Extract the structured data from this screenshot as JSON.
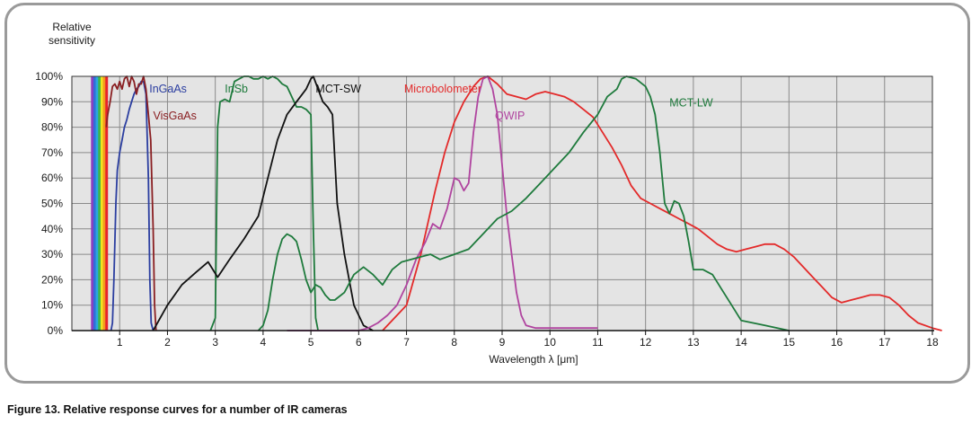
{
  "caption": "Figure 13. Relative response curves for a number of IR cameras",
  "chart_data": {
    "type": "line",
    "title": "",
    "ylabel_lines": [
      "Relative",
      "sensitivity"
    ],
    "xlabel": "Wavelength λ [μm]",
    "xlim": [
      0,
      18
    ],
    "ylim": [
      0,
      100
    ],
    "x_ticks": [
      "1",
      "2",
      "3",
      "4",
      "5",
      "6",
      "7",
      "8",
      "9",
      "10",
      "11",
      "12",
      "13",
      "14",
      "15",
      "16",
      "17",
      "18"
    ],
    "y_ticks": [
      "0%",
      "10%",
      "20%",
      "30%",
      "40%",
      "50%",
      "60%",
      "70%",
      "80%",
      "90%",
      "100%"
    ],
    "grid": true,
    "plot_background": "#e4e4e4",
    "visible_band": {
      "x": [
        0.4,
        0.75
      ],
      "colors": [
        "#8b3fbf",
        "#2f6fd8",
        "#2aa7df",
        "#3db34a",
        "#f2e21e",
        "#f39a1e",
        "#e8232a"
      ]
    },
    "series": [
      {
        "name": "InGaAs",
        "color": "#2b3ea0",
        "points": [
          [
            0.82,
            0
          ],
          [
            0.85,
            3
          ],
          [
            0.88,
            20
          ],
          [
            0.92,
            50
          ],
          [
            0.95,
            63
          ],
          [
            1.0,
            70
          ],
          [
            1.05,
            75
          ],
          [
            1.1,
            80
          ],
          [
            1.15,
            83
          ],
          [
            1.2,
            87
          ],
          [
            1.25,
            90
          ],
          [
            1.3,
            93
          ],
          [
            1.35,
            95
          ],
          [
            1.4,
            96
          ],
          [
            1.45,
            98
          ],
          [
            1.5,
            98
          ],
          [
            1.55,
            93
          ],
          [
            1.6,
            60
          ],
          [
            1.63,
            20
          ],
          [
            1.66,
            3
          ],
          [
            1.7,
            0
          ]
        ]
      },
      {
        "name": "VisGaAs",
        "color": "#8a1f22",
        "points": [
          [
            0.72,
            80
          ],
          [
            0.75,
            85
          ],
          [
            0.8,
            90
          ],
          [
            0.85,
            96
          ],
          [
            0.9,
            97
          ],
          [
            0.95,
            95
          ],
          [
            1.0,
            98
          ],
          [
            1.05,
            95
          ],
          [
            1.1,
            99
          ],
          [
            1.15,
            100
          ],
          [
            1.2,
            96
          ],
          [
            1.25,
            100
          ],
          [
            1.3,
            98
          ],
          [
            1.35,
            93
          ],
          [
            1.4,
            97
          ],
          [
            1.45,
            97
          ],
          [
            1.5,
            100
          ],
          [
            1.55,
            95
          ],
          [
            1.6,
            85
          ],
          [
            1.65,
            75
          ],
          [
            1.7,
            40
          ],
          [
            1.73,
            10
          ],
          [
            1.76,
            0
          ]
        ]
      },
      {
        "name": "InSb",
        "color": "#1e7a3c",
        "points": [
          [
            2.9,
            0
          ],
          [
            3.0,
            5
          ],
          [
            3.05,
            80
          ],
          [
            3.1,
            90
          ],
          [
            3.2,
            91
          ],
          [
            3.3,
            90
          ],
          [
            3.4,
            98
          ],
          [
            3.5,
            99
          ],
          [
            3.6,
            100
          ],
          [
            3.7,
            100
          ],
          [
            3.8,
            99
          ],
          [
            3.9,
            99
          ],
          [
            4.0,
            100
          ],
          [
            4.1,
            99
          ],
          [
            4.2,
            100
          ],
          [
            4.3,
            99
          ],
          [
            4.4,
            97
          ],
          [
            4.5,
            96
          ],
          [
            4.6,
            92
          ],
          [
            4.7,
            88
          ],
          [
            4.8,
            88
          ],
          [
            4.9,
            87
          ],
          [
            5.0,
            85
          ],
          [
            5.05,
            40
          ],
          [
            5.1,
            5
          ],
          [
            5.15,
            0
          ]
        ]
      },
      {
        "name": "MCT-SW",
        "color": "#111111",
        "points": [
          [
            1.7,
            0
          ],
          [
            2.0,
            10
          ],
          [
            2.3,
            18
          ],
          [
            2.6,
            23
          ],
          [
            2.85,
            27
          ],
          [
            3.05,
            21
          ],
          [
            3.3,
            28
          ],
          [
            3.6,
            36
          ],
          [
            3.9,
            45
          ],
          [
            4.1,
            60
          ],
          [
            4.3,
            75
          ],
          [
            4.5,
            85
          ],
          [
            4.7,
            90
          ],
          [
            4.9,
            95
          ],
          [
            5.0,
            99
          ],
          [
            5.05,
            100
          ],
          [
            5.15,
            95
          ],
          [
            5.25,
            90
          ],
          [
            5.35,
            88
          ],
          [
            5.45,
            85
          ],
          [
            5.55,
            50
          ],
          [
            5.7,
            30
          ],
          [
            5.9,
            10
          ],
          [
            6.1,
            2
          ],
          [
            6.3,
            0
          ]
        ]
      },
      {
        "name": "Microbolometer",
        "color": "#e32a2a",
        "points": [
          [
            6.5,
            0
          ],
          [
            7.0,
            10
          ],
          [
            7.3,
            30
          ],
          [
            7.6,
            55
          ],
          [
            7.8,
            70
          ],
          [
            8.0,
            82
          ],
          [
            8.2,
            90
          ],
          [
            8.4,
            96
          ],
          [
            8.55,
            99
          ],
          [
            8.7,
            100
          ],
          [
            8.9,
            97
          ],
          [
            9.1,
            93
          ],
          [
            9.3,
            92
          ],
          [
            9.5,
            91
          ],
          [
            9.7,
            93
          ],
          [
            9.9,
            94
          ],
          [
            10.1,
            93
          ],
          [
            10.3,
            92
          ],
          [
            10.5,
            90
          ],
          [
            10.7,
            87
          ],
          [
            10.9,
            84
          ],
          [
            11.1,
            78
          ],
          [
            11.3,
            72
          ],
          [
            11.5,
            65
          ],
          [
            11.7,
            57
          ],
          [
            11.9,
            52
          ],
          [
            12.1,
            50
          ],
          [
            12.3,
            48
          ],
          [
            12.5,
            46
          ],
          [
            12.7,
            44
          ],
          [
            12.9,
            42
          ],
          [
            13.1,
            40
          ],
          [
            13.3,
            37
          ],
          [
            13.5,
            34
          ],
          [
            13.7,
            32
          ],
          [
            13.9,
            31
          ],
          [
            14.1,
            32
          ],
          [
            14.3,
            33
          ],
          [
            14.5,
            34
          ],
          [
            14.7,
            34
          ],
          [
            14.9,
            32
          ],
          [
            15.1,
            29
          ],
          [
            15.3,
            25
          ],
          [
            15.5,
            21
          ],
          [
            15.7,
            17
          ],
          [
            15.9,
            13
          ],
          [
            16.1,
            11
          ],
          [
            16.3,
            12
          ],
          [
            16.5,
            13
          ],
          [
            16.7,
            14
          ],
          [
            16.9,
            14
          ],
          [
            17.1,
            13
          ],
          [
            17.3,
            10
          ],
          [
            17.5,
            6
          ],
          [
            17.7,
            3
          ],
          [
            18.0,
            1
          ],
          [
            18.2,
            0
          ]
        ]
      },
      {
        "name": "QWIP",
        "color": "#b0449f",
        "points": [
          [
            4.5,
            0
          ],
          [
            5.5,
            0
          ],
          [
            6.0,
            0
          ],
          [
            6.2,
            1
          ],
          [
            6.4,
            3
          ],
          [
            6.6,
            6
          ],
          [
            6.8,
            10
          ],
          [
            7.0,
            18
          ],
          [
            7.2,
            28
          ],
          [
            7.4,
            35
          ],
          [
            7.55,
            42
          ],
          [
            7.7,
            40
          ],
          [
            7.85,
            48
          ],
          [
            8.0,
            60
          ],
          [
            8.1,
            59
          ],
          [
            8.2,
            55
          ],
          [
            8.3,
            58
          ],
          [
            8.4,
            78
          ],
          [
            8.5,
            92
          ],
          [
            8.6,
            99
          ],
          [
            8.7,
            100
          ],
          [
            8.8,
            95
          ],
          [
            8.9,
            85
          ],
          [
            9.0,
            65
          ],
          [
            9.1,
            45
          ],
          [
            9.2,
            30
          ],
          [
            9.3,
            15
          ],
          [
            9.4,
            6
          ],
          [
            9.5,
            2
          ],
          [
            9.7,
            1
          ],
          [
            10.0,
            1
          ],
          [
            11.0,
            1
          ]
        ]
      },
      {
        "name": "MCT-LW",
        "color": "#1e7a3c",
        "points": [
          [
            3.9,
            0
          ],
          [
            4.0,
            2
          ],
          [
            4.1,
            8
          ],
          [
            4.2,
            20
          ],
          [
            4.3,
            30
          ],
          [
            4.4,
            36
          ],
          [
            4.5,
            38
          ],
          [
            4.6,
            37
          ],
          [
            4.7,
            35
          ],
          [
            4.8,
            28
          ],
          [
            4.9,
            20
          ],
          [
            5.0,
            15
          ],
          [
            5.1,
            18
          ],
          [
            5.2,
            17
          ],
          [
            5.3,
            14
          ],
          [
            5.4,
            12
          ],
          [
            5.5,
            12
          ],
          [
            5.7,
            15
          ],
          [
            5.9,
            22
          ],
          [
            6.1,
            25
          ],
          [
            6.3,
            22
          ],
          [
            6.5,
            18
          ],
          [
            6.7,
            24
          ],
          [
            6.9,
            27
          ],
          [
            7.1,
            28
          ],
          [
            7.3,
            29
          ],
          [
            7.5,
            30
          ],
          [
            7.7,
            28
          ],
          [
            8.0,
            30
          ],
          [
            8.3,
            32
          ],
          [
            8.6,
            38
          ],
          [
            8.9,
            44
          ],
          [
            9.2,
            47
          ],
          [
            9.5,
            52
          ],
          [
            9.8,
            58
          ],
          [
            10.1,
            64
          ],
          [
            10.4,
            70
          ],
          [
            10.7,
            78
          ],
          [
            11.0,
            85
          ],
          [
            11.2,
            92
          ],
          [
            11.4,
            95
          ],
          [
            11.5,
            99
          ],
          [
            11.6,
            100
          ],
          [
            11.8,
            99
          ],
          [
            12.0,
            96
          ],
          [
            12.1,
            92
          ],
          [
            12.2,
            85
          ],
          [
            12.3,
            70
          ],
          [
            12.4,
            50
          ],
          [
            12.5,
            46
          ],
          [
            12.6,
            51
          ],
          [
            12.7,
            50
          ],
          [
            12.8,
            45
          ],
          [
            12.9,
            35
          ],
          [
            13.0,
            24
          ],
          [
            13.2,
            24
          ],
          [
            13.4,
            22
          ],
          [
            13.6,
            16
          ],
          [
            13.8,
            10
          ],
          [
            14.0,
            4
          ],
          [
            14.5,
            2
          ],
          [
            15.0,
            0
          ]
        ]
      }
    ],
    "series_labels": [
      {
        "text": "InGaAs",
        "color": "#2b3ea0",
        "x": 1.62,
        "y": 95
      },
      {
        "text": "InSb",
        "color": "#1e7a3c",
        "x": 3.2,
        "y": 95
      },
      {
        "text": "MCT-SW",
        "color": "#111111",
        "x": 5.1,
        "y": 95
      },
      {
        "text": "Microbolometer",
        "color": "#e32a2a",
        "x": 6.95,
        "y": 95
      },
      {
        "text": "VisGaAs",
        "color": "#8a1f22",
        "x": 1.7,
        "y": 84.5
      },
      {
        "text": "QWIP",
        "color": "#b0449f",
        "x": 8.85,
        "y": 84.5
      },
      {
        "text": "MCT-LW",
        "color": "#1e7a3c",
        "x": 12.5,
        "y": 89.5
      }
    ]
  }
}
